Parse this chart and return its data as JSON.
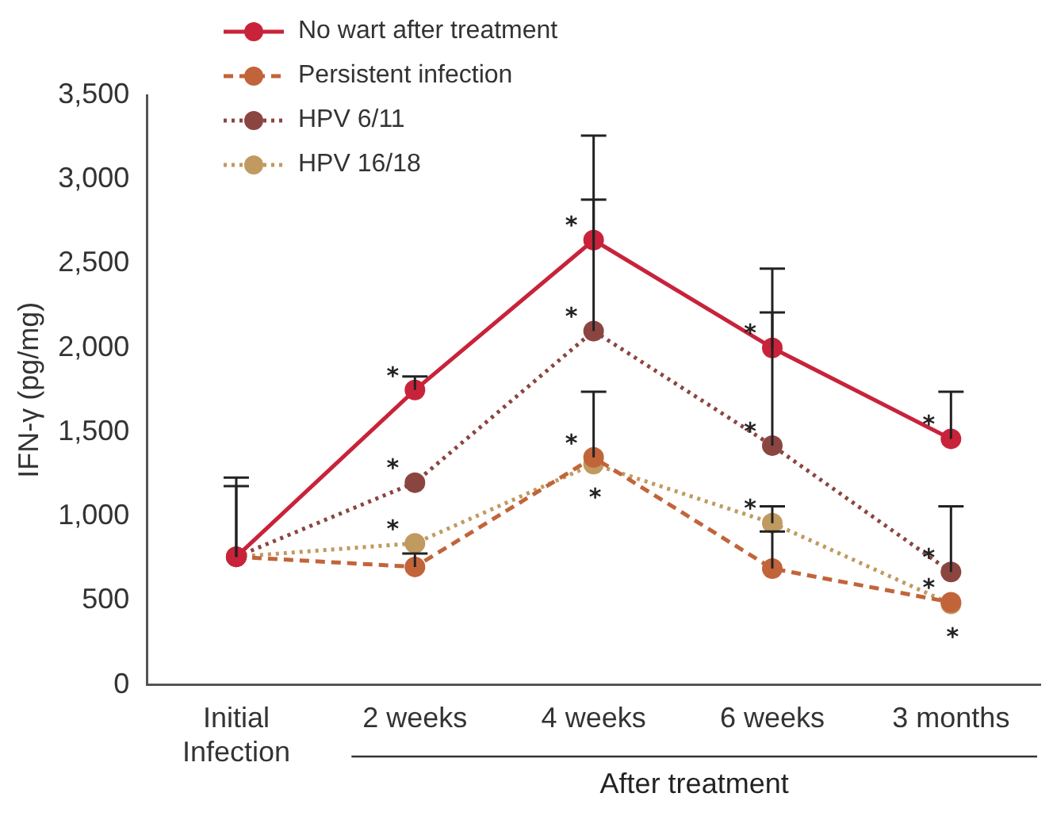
{
  "chart_data": {
    "type": "line",
    "ylabel": "IFN-γ (pg/mg)",
    "categories": [
      "Initial Infection",
      "2 weeks",
      "4 weeks",
      "6 weeks",
      "3 months"
    ],
    "series": [
      {
        "name": "No wart after treatment",
        "color": "#c8233a",
        "line_style": "solid",
        "values": [
          760,
          1750,
          2640,
          2000,
          1460
        ],
        "errors": [
          [
            760,
            1230
          ],
          [
            1750,
            1830
          ],
          [
            2640,
            3260
          ],
          [
            2000,
            2470
          ],
          [
            1460,
            1740
          ]
        ]
      },
      {
        "name": "Persistent infection",
        "color": "#c2643a",
        "line_style": "dashed",
        "values": [
          760,
          700,
          1350,
          690,
          490
        ],
        "errors": [
          null,
          [
            700,
            780
          ],
          [
            1350,
            1740
          ],
          [
            690,
            910
          ],
          null
        ]
      },
      {
        "name": "HPV 6/11",
        "color": "#8b4540",
        "line_style": "dotted",
        "values": [
          760,
          1200,
          2100,
          1420,
          670
        ],
        "errors": [
          [
            760,
            1180
          ],
          null,
          [
            2100,
            2880
          ],
          [
            1420,
            2210
          ],
          [
            670,
            1060
          ]
        ]
      },
      {
        "name": "HPV 16/18",
        "color": "#c09a60",
        "line_style": "dotted",
        "values": [
          760,
          840,
          1310,
          960,
          480
        ],
        "errors": [
          null,
          null,
          null,
          [
            960,
            1060
          ],
          null
        ]
      }
    ],
    "ylim": [
      0,
      3500
    ],
    "yticks": [
      0,
      500,
      {
        "value": 1000,
        "label": "1,000"
      },
      {
        "value": 1500,
        "label": "1,500"
      },
      {
        "value": 2000,
        "label": "2,000"
      },
      {
        "value": 2500,
        "label": "2,500"
      },
      {
        "value": 3000,
        "label": "3,000"
      },
      {
        "value": 3500,
        "label": "3,500"
      }
    ],
    "grid": false,
    "legend": "top left",
    "marker": "circle",
    "annotations": [
      "After treatment",
      {
        "text": "*",
        "x": "2 weeks",
        "y": 1750
      },
      {
        "text": "*",
        "x": "2 weeks",
        "y": 1200
      },
      {
        "text": "*",
        "x": "2 weeks",
        "y": 840
      },
      {
        "text": "*",
        "x": "4 weeks",
        "y": 2640
      },
      {
        "text": "*",
        "x": "4 weeks",
        "y": 2100
      },
      {
        "text": "*",
        "x": "4 weeks",
        "y": 1350
      },
      {
        "text": "*",
        "x": "4 weeks",
        "y": 1310
      },
      {
        "text": "*",
        "x": "6 weeks",
        "y": 2000
      },
      {
        "text": "*",
        "x": "6 weeks",
        "y": 1420
      },
      {
        "text": "*",
        "x": "6 weeks",
        "y": 960
      },
      {
        "text": "*",
        "x": "3 months",
        "y": 1460
      },
      {
        "text": "*",
        "x": "3 months",
        "y": 670
      },
      {
        "text": "*",
        "x": "3 months",
        "y": 490
      },
      {
        "text": "*",
        "x": "3 months",
        "y": 480
      }
    ]
  }
}
